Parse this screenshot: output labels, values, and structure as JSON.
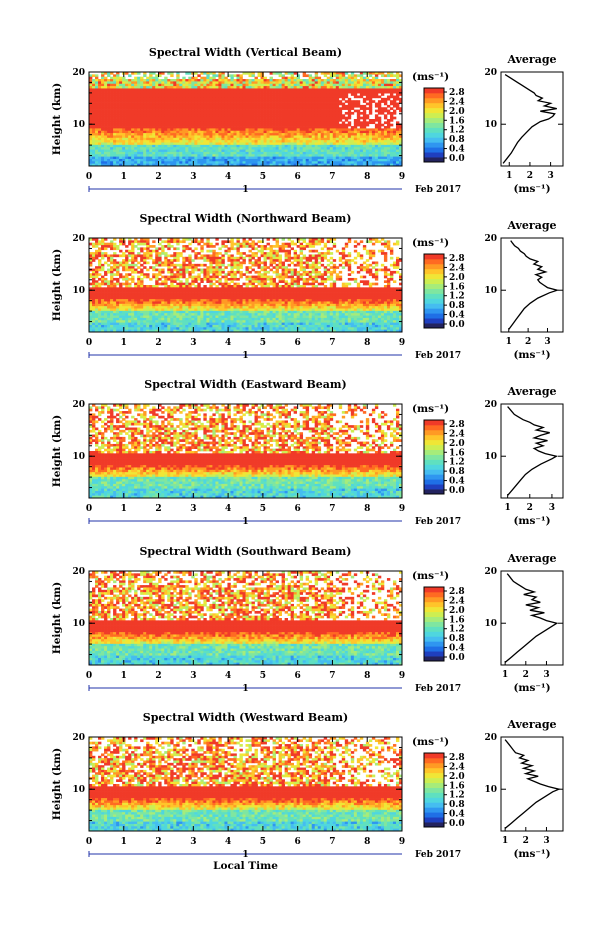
{
  "colors": {
    "palette": [
      "#23235f",
      "#1f3fbf",
      "#1f6fe6",
      "#2f96f0",
      "#45bdf0",
      "#4fd6df",
      "#5fe0c0",
      "#7fe6a0",
      "#a6ec7a",
      "#cdee52",
      "#f0e636",
      "#ffc52a",
      "#ff9a24",
      "#ff6a22",
      "#f03a28"
    ],
    "line": "#000000"
  },
  "chart_data": [
    {
      "type": "heatmap",
      "title": "Spectral Width (Vertical Beam)",
      "ylabel": "Height (km)",
      "xlabel": "",
      "date_label": "Feb 2017",
      "day_label": "1",
      "x_ticks": [
        "0",
        "1",
        "2",
        "3",
        "4",
        "5",
        "6",
        "7",
        "8",
        "9"
      ],
      "y_ticks": [
        "10",
        "20"
      ],
      "xlim": [
        0,
        9
      ],
      "ylim": [
        2,
        20
      ],
      "colorbar": {
        "unit": "(ms⁻¹)",
        "ticks": [
          "2.8",
          "2.4",
          "2.0",
          "1.6",
          "1.2",
          "0.8",
          "0.4",
          "0.0"
        ],
        "range": [
          0.0,
          2.8
        ]
      },
      "average": {
        "title": "Average",
        "xlabel": "(ms⁻¹)",
        "x_ticks": [
          "1",
          "2",
          "3"
        ],
        "xlim": [
          0.6,
          3.6
        ],
        "y_ticks": [
          "10",
          "20"
        ],
        "height": [
          2.5,
          3.5,
          4.5,
          5.5,
          6.5,
          7.5,
          8.5,
          9.5,
          10.5,
          11,
          11.5,
          12,
          12.5,
          13,
          13.5,
          14,
          14.5,
          15,
          15.5,
          16,
          16.5,
          17,
          17.5,
          18,
          18.5,
          19,
          19.5
        ],
        "value": [
          0.7,
          0.9,
          1.1,
          1.25,
          1.4,
          1.6,
          1.85,
          2.1,
          2.5,
          2.9,
          3.1,
          3.2,
          2.5,
          3.3,
          2.7,
          3.0,
          2.4,
          2.6,
          2.3,
          2.2,
          2.0,
          1.8,
          1.6,
          1.4,
          1.2,
          1.0,
          0.8
        ]
      }
    },
    {
      "type": "heatmap",
      "title": "Spectral Width (Northward Beam)",
      "ylabel": "Height (km)",
      "xlabel": "",
      "date_label": "Feb 2017",
      "day_label": "1",
      "x_ticks": [
        "0",
        "1",
        "2",
        "3",
        "4",
        "5",
        "6",
        "7",
        "8",
        "9"
      ],
      "y_ticks": [
        "10",
        "20"
      ],
      "xlim": [
        0,
        9
      ],
      "ylim": [
        2,
        20
      ],
      "colorbar": {
        "unit": "(ms⁻¹)",
        "ticks": [
          "2.8",
          "2.4",
          "2.0",
          "1.6",
          "1.2",
          "0.8",
          "0.4",
          "0.0"
        ],
        "range": [
          0.0,
          2.8
        ]
      },
      "average": {
        "title": "Average",
        "xlabel": "(ms⁻¹)",
        "x_ticks": [
          "1",
          "2",
          "3"
        ],
        "xlim": [
          0.6,
          3.8
        ],
        "y_ticks": [
          "10",
          "20"
        ],
        "height": [
          2.5,
          3.5,
          4.5,
          5.5,
          6.5,
          7.5,
          8.5,
          9.5,
          10,
          10.5,
          11,
          11.5,
          12,
          12.5,
          13,
          13.5,
          14,
          14.5,
          15,
          15.5,
          16,
          16.5,
          17,
          17.5,
          18,
          18.5,
          19,
          19.5
        ],
        "value": [
          1.0,
          1.2,
          1.4,
          1.6,
          1.8,
          2.1,
          2.5,
          3.1,
          3.5,
          3.0,
          2.8,
          2.6,
          2.5,
          2.7,
          2.4,
          2.9,
          2.5,
          2.7,
          2.3,
          2.5,
          2.1,
          1.9,
          1.8,
          1.6,
          1.5,
          1.3,
          1.2,
          1.1
        ]
      }
    },
    {
      "type": "heatmap",
      "title": "Spectral Width (Eastward Beam)",
      "ylabel": "Height (km)",
      "xlabel": "",
      "date_label": "Feb 2017",
      "day_label": "1",
      "x_ticks": [
        "0",
        "1",
        "2",
        "3",
        "4",
        "5",
        "6",
        "7",
        "8",
        "9"
      ],
      "y_ticks": [
        "10",
        "20"
      ],
      "xlim": [
        0,
        9
      ],
      "ylim": [
        2,
        20
      ],
      "colorbar": {
        "unit": "(ms⁻¹)",
        "ticks": [
          "2.8",
          "2.4",
          "2.0",
          "1.6",
          "1.2",
          "0.8",
          "0.4",
          "0.0"
        ],
        "range": [
          0.0,
          2.8
        ]
      },
      "average": {
        "title": "Average",
        "xlabel": "(ms⁻¹)",
        "x_ticks": [
          "1",
          "2",
          "3"
        ],
        "xlim": [
          0.7,
          3.5
        ],
        "y_ticks": [
          "10",
          "20"
        ],
        "height": [
          2.5,
          3.5,
          4.5,
          5.5,
          6.5,
          7.5,
          8.5,
          9.5,
          10,
          10.5,
          11,
          11.5,
          12,
          12.5,
          13,
          13.5,
          14,
          14.5,
          15,
          15.5,
          16,
          16.5,
          17,
          17.5,
          18,
          18.5,
          19,
          19.5
        ],
        "value": [
          1.0,
          1.2,
          1.4,
          1.6,
          1.8,
          2.1,
          2.5,
          3.0,
          3.2,
          2.7,
          2.4,
          2.2,
          2.6,
          2.3,
          2.8,
          2.2,
          2.5,
          2.9,
          2.3,
          2.6,
          2.2,
          2.0,
          1.7,
          1.5,
          1.3,
          1.2,
          1.1,
          1.0
        ]
      }
    },
    {
      "type": "heatmap",
      "title": "Spectral Width (Southward Beam)",
      "ylabel": "Height (km)",
      "xlabel": "",
      "date_label": "Feb 2017",
      "day_label": "1",
      "x_ticks": [
        "0",
        "1",
        "2",
        "3",
        "4",
        "5",
        "6",
        "7",
        "8",
        "9"
      ],
      "y_ticks": [
        "10",
        "20"
      ],
      "xlim": [
        0,
        9
      ],
      "ylim": [
        2,
        20
      ],
      "colorbar": {
        "unit": "(ms⁻¹)",
        "ticks": [
          "2.8",
          "2.4",
          "2.0",
          "1.6",
          "1.2",
          "0.8",
          "0.4",
          "0.0"
        ],
        "range": [
          0.0,
          2.8
        ]
      },
      "average": {
        "title": "Average",
        "xlabel": "(ms⁻¹)",
        "x_ticks": [
          "1",
          "2",
          "3"
        ],
        "xlim": [
          0.8,
          3.8
        ],
        "y_ticks": [
          "10",
          "20"
        ],
        "height": [
          2.5,
          3.5,
          4.5,
          5.5,
          6.5,
          7.5,
          8.5,
          9.5,
          10,
          10.5,
          11,
          11.5,
          12,
          12.5,
          13,
          13.5,
          14,
          14.5,
          15,
          15.5,
          16,
          16.5,
          17,
          17.5,
          18,
          18.5,
          19,
          19.5
        ],
        "value": [
          1.0,
          1.3,
          1.6,
          1.9,
          2.2,
          2.5,
          2.9,
          3.3,
          3.5,
          3.0,
          2.7,
          2.3,
          2.9,
          2.2,
          2.6,
          2.0,
          2.7,
          2.3,
          2.5,
          1.9,
          2.4,
          2.0,
          1.8,
          1.6,
          1.4,
          1.3,
          1.2,
          1.1
        ]
      }
    },
    {
      "type": "heatmap",
      "title": "Spectral Width (Westward Beam)",
      "ylabel": "Height (km)",
      "xlabel": "Local Time",
      "date_label": "Feb 2017",
      "day_label": "1",
      "x_ticks": [
        "0",
        "1",
        "2",
        "3",
        "4",
        "5",
        "6",
        "7",
        "8",
        "9"
      ],
      "y_ticks": [
        "10",
        "20"
      ],
      "xlim": [
        0,
        9
      ],
      "ylim": [
        2,
        20
      ],
      "colorbar": {
        "unit": "(ms⁻¹)",
        "ticks": [
          "2.8",
          "2.4",
          "2.0",
          "1.6",
          "1.2",
          "0.8",
          "0.4",
          "0.0"
        ],
        "range": [
          0.0,
          2.8
        ]
      },
      "average": {
        "title": "Average",
        "xlabel": "(ms⁻¹)",
        "x_ticks": [
          "1",
          "2",
          "3"
        ],
        "xlim": [
          0.8,
          3.8
        ],
        "y_ticks": [
          "10",
          "20"
        ],
        "height": [
          2.5,
          3.5,
          4.5,
          5.5,
          6.5,
          7.5,
          8.5,
          9.5,
          10,
          10.5,
          11,
          11.5,
          12,
          12.5,
          13,
          13.5,
          14,
          14.5,
          15,
          15.5,
          16,
          16.5,
          17,
          17.5,
          18,
          18.5,
          19,
          19.5
        ],
        "value": [
          1.0,
          1.3,
          1.6,
          1.9,
          2.2,
          2.5,
          2.9,
          3.3,
          3.6,
          3.1,
          2.7,
          2.4,
          2.1,
          2.6,
          2.0,
          2.4,
          1.9,
          2.3,
          1.8,
          2.1,
          1.7,
          1.9,
          1.5,
          1.4,
          1.3,
          1.2,
          1.1,
          1.0
        ]
      }
    }
  ]
}
